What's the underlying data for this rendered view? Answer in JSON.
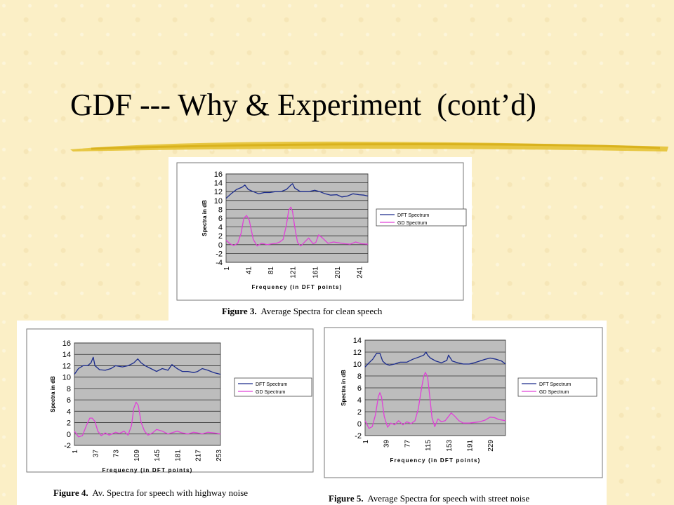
{
  "slide": {
    "title": "GDF --- Why & Experiment  (cont’d)",
    "accent_color": "#e3c02b"
  },
  "figures": [
    {
      "caption_label": "Figure 3.",
      "caption_text": "  Average Spectra for clean speech"
    },
    {
      "caption_label": "Figure 4.",
      "caption_text": "  Av. Spectra for speech with highway noise"
    },
    {
      "caption_label": "Figure 5.",
      "caption_text": "  Average Spectra for speech with street noise"
    }
  ],
  "chart_data": [
    {
      "type": "line",
      "ylabel": "Spectra in dB",
      "xlabel": "Frequency (in DFT points)",
      "ylim": [
        -4,
        16
      ],
      "y_ticks": [
        -4,
        -2,
        0,
        2,
        4,
        6,
        8,
        10,
        12,
        14,
        16
      ],
      "x_ticks": [
        "1",
        "41",
        "81",
        "121",
        "161",
        "201",
        "241"
      ],
      "xlim": [
        1,
        257
      ],
      "grid": true,
      "legend_position": "right",
      "series": [
        {
          "name": "DFT Spectrum",
          "color": "#1a2a8c",
          "x": [
            1,
            10,
            20,
            30,
            35,
            41,
            50,
            60,
            70,
            80,
            90,
            100,
            110,
            118,
            121,
            125,
            135,
            150,
            161,
            170,
            180,
            190,
            201,
            210,
            220,
            230,
            241,
            250,
            257
          ],
          "y": [
            10.5,
            11.5,
            12.5,
            13,
            13.5,
            12.5,
            12,
            11.5,
            11.8,
            11.8,
            12,
            12,
            12.5,
            13.5,
            13.8,
            12.8,
            12,
            12,
            12.3,
            12,
            11.5,
            11.2,
            11.3,
            10.8,
            11,
            11.5,
            11.3,
            11.2,
            11
          ]
        },
        {
          "name": "GD Spectrum",
          "color": "#e040d8",
          "x": [
            1,
            8,
            15,
            22,
            28,
            33,
            38,
            43,
            50,
            57,
            65,
            75,
            85,
            92,
            98,
            104,
            110,
            114,
            118,
            121,
            125,
            130,
            136,
            142,
            150,
            158,
            163,
            168,
            175,
            185,
            195,
            205,
            215,
            225,
            235,
            245,
            257
          ],
          "y": [
            1,
            0.2,
            -0.2,
            0.3,
            2.5,
            6,
            6.6,
            5.5,
            1.2,
            -0.3,
            0.3,
            0,
            0.2,
            0.3,
            0.6,
            1.2,
            4.5,
            7.8,
            8.5,
            7.5,
            4,
            0.5,
            -0.3,
            0.5,
            1.5,
            0.2,
            0.5,
            2.2,
            1.5,
            0.3,
            0.6,
            0.4,
            0.2,
            0.1,
            0.6,
            0.2,
            0.1
          ]
        }
      ]
    },
    {
      "type": "line",
      "ylabel": "Spectra in dB",
      "xlabel": "Frequecny (in DFT points)",
      "ylim": [
        -2,
        16
      ],
      "y_ticks": [
        -2,
        0,
        2,
        4,
        6,
        8,
        10,
        12,
        14,
        16
      ],
      "x_ticks": [
        "1",
        "37",
        "73",
        "109",
        "145",
        "181",
        "217",
        "253"
      ],
      "xlim": [
        1,
        257
      ],
      "grid": true,
      "legend_position": "right",
      "series": [
        {
          "name": "DFT Spectrum",
          "color": "#1a2a8c",
          "x": [
            1,
            8,
            16,
            24,
            30,
            34,
            37,
            45,
            55,
            65,
            73,
            85,
            95,
            105,
            112,
            118,
            125,
            135,
            145,
            155,
            165,
            172,
            181,
            190,
            200,
            210,
            217,
            225,
            235,
            245,
            257
          ],
          "y": [
            10.5,
            11.5,
            12,
            12,
            12.5,
            13.5,
            12,
            11.3,
            11.2,
            11.5,
            12,
            11.8,
            12,
            12.5,
            13.2,
            12.5,
            12,
            11.5,
            11,
            11.5,
            11.2,
            12.2,
            11.5,
            11,
            11,
            10.8,
            11,
            11.5,
            11.2,
            10.8,
            10.5
          ]
        },
        {
          "name": "GD Spectrum",
          "color": "#e040d8",
          "x": [
            1,
            8,
            15,
            22,
            28,
            32,
            37,
            42,
            48,
            55,
            62,
            73,
            80,
            88,
            95,
            101,
            105,
            109,
            113,
            118,
            124,
            130,
            138,
            145,
            155,
            165,
            175,
            181,
            190,
            200,
            210,
            217,
            225,
            235,
            245,
            257
          ],
          "y": [
            0.5,
            -0.5,
            -0.3,
            1.5,
            2.8,
            2.8,
            2.2,
            0.5,
            -0.3,
            0.2,
            -0.2,
            0.3,
            0.1,
            0.5,
            -0.2,
            1.5,
            4.5,
            5.6,
            5,
            2,
            0.5,
            -0.2,
            0.2,
            0.8,
            0.5,
            0,
            0.3,
            0.5,
            0.2,
            0,
            0.3,
            0.2,
            0,
            0.3,
            0.2,
            0
          ]
        }
      ]
    },
    {
      "type": "line",
      "ylabel": "Spectra in dB",
      "xlabel": "Frequency (in DFT points)",
      "ylim": [
        -2,
        14
      ],
      "y_ticks": [
        -2,
        0,
        2,
        4,
        6,
        8,
        10,
        12,
        14
      ],
      "x_ticks": [
        "1",
        "39",
        "77",
        "115",
        "153",
        "191",
        "229"
      ],
      "xlim": [
        1,
        257
      ],
      "grid": true,
      "legend_position": "right",
      "series": [
        {
          "name": "DFT Spectrum",
          "color": "#1a2a8c",
          "x": [
            1,
            8,
            15,
            22,
            28,
            33,
            39,
            45,
            55,
            65,
            77,
            88,
            100,
            108,
            112,
            115,
            120,
            130,
            140,
            150,
            153,
            160,
            170,
            180,
            191,
            200,
            210,
            220,
            229,
            240,
            250,
            257
          ],
          "y": [
            9.5,
            10.2,
            10.8,
            11.8,
            11.8,
            10.5,
            10,
            9.8,
            10,
            10.3,
            10.3,
            10.8,
            11.2,
            11.5,
            12,
            11.5,
            11,
            10.5,
            10.2,
            10.6,
            11.5,
            10.5,
            10.2,
            10,
            10,
            10.2,
            10.5,
            10.8,
            11,
            10.8,
            10.5,
            10
          ]
        },
        {
          "name": "GD Spectrum",
          "color": "#e040d8",
          "x": [
            1,
            8,
            14,
            20,
            25,
            28,
            31,
            36,
            42,
            48,
            55,
            62,
            70,
            77,
            85,
            92,
            98,
            104,
            108,
            111,
            115,
            119,
            123,
            128,
            134,
            140,
            147,
            153,
            158,
            165,
            172,
            180,
            191,
            200,
            210,
            220,
            229,
            237,
            245,
            257
          ],
          "y": [
            0.5,
            -0.8,
            -0.5,
            1.5,
            4.5,
            5.2,
            4.5,
            1.2,
            -0.6,
            0.1,
            -0.2,
            0.5,
            -0.2,
            0.3,
            0,
            0.5,
            2.5,
            6,
            8,
            8.6,
            7.8,
            4.5,
            1,
            -0.5,
            0.8,
            0.3,
            0.5,
            1.2,
            1.8,
            1.2,
            0.5,
            0.1,
            0.1,
            0.2,
            0.3,
            0.6,
            1.1,
            1,
            0.7,
            0.5
          ]
        }
      ]
    }
  ]
}
